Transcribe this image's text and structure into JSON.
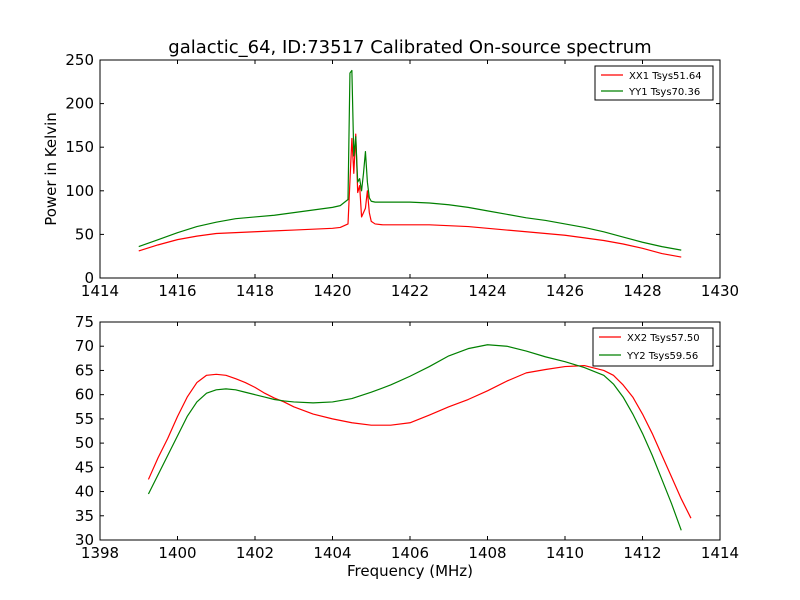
{
  "figure": {
    "title": "galactic_64, ID:73517 Calibrated On-source spectrum"
  },
  "chart_data": [
    {
      "type": "line",
      "title": "galactic_64, ID:73517 Calibrated On-source spectrum",
      "xlabel": "",
      "ylabel": "Power in Kelvin",
      "xlim": [
        1414,
        1430
      ],
      "ylim": [
        0,
        250
      ],
      "xticks": [
        1414,
        1416,
        1418,
        1420,
        1422,
        1424,
        1426,
        1428,
        1430
      ],
      "yticks": [
        0,
        50,
        100,
        150,
        200,
        250
      ],
      "grid": false,
      "legend_position": "top-right",
      "series": [
        {
          "name": "XX1 Tsys51.64",
          "color": "#ff0000",
          "x": [
            1415.0,
            1415.5,
            1416.0,
            1416.5,
            1417.0,
            1417.5,
            1418.0,
            1418.5,
            1419.0,
            1419.5,
            1420.0,
            1420.2,
            1420.4,
            1420.5,
            1420.55,
            1420.6,
            1420.65,
            1420.7,
            1420.75,
            1420.8,
            1420.85,
            1420.9,
            1420.95,
            1421.0,
            1421.1,
            1421.3,
            1421.5,
            1422.0,
            1422.5,
            1423.0,
            1423.5,
            1424.0,
            1424.5,
            1425.0,
            1425.5,
            1426.0,
            1426.5,
            1427.0,
            1427.5,
            1428.0,
            1428.5,
            1429.0
          ],
          "y": [
            31,
            38,
            44,
            48,
            51,
            52,
            53,
            54,
            55,
            56,
            57,
            58,
            62,
            160,
            120,
            165,
            98,
            106,
            70,
            75,
            80,
            100,
            75,
            65,
            62,
            61,
            61,
            61,
            61,
            60,
            59,
            57,
            55,
            53,
            51,
            49,
            46,
            43,
            39,
            34,
            28,
            24
          ]
        },
        {
          "name": "YY1 Tsys70.36",
          "color": "#008000",
          "x": [
            1415.0,
            1415.5,
            1416.0,
            1416.5,
            1417.0,
            1417.5,
            1418.0,
            1418.5,
            1419.0,
            1419.5,
            1420.0,
            1420.2,
            1420.4,
            1420.45,
            1420.5,
            1420.55,
            1420.6,
            1420.65,
            1420.7,
            1420.75,
            1420.8,
            1420.85,
            1420.9,
            1420.95,
            1421.0,
            1421.1,
            1421.3,
            1421.5,
            1422.0,
            1422.5,
            1423.0,
            1423.5,
            1424.0,
            1424.5,
            1425.0,
            1425.5,
            1426.0,
            1426.5,
            1427.0,
            1427.5,
            1428.0,
            1428.5,
            1429.0
          ],
          "y": [
            36,
            44,
            52,
            59,
            64,
            68,
            70,
            72,
            75,
            78,
            81,
            83,
            90,
            235,
            238,
            140,
            162,
            110,
            114,
            100,
            120,
            145,
            110,
            92,
            88,
            87,
            87,
            87,
            87,
            86,
            84,
            81,
            77,
            73,
            69,
            66,
            62,
            58,
            53,
            47,
            41,
            36,
            32
          ]
        }
      ]
    },
    {
      "type": "line",
      "title": "",
      "xlabel": "Frequency (MHz)",
      "ylabel": "",
      "xlim": [
        1398,
        1414
      ],
      "ylim": [
        30,
        75
      ],
      "xticks": [
        1398,
        1400,
        1402,
        1404,
        1406,
        1408,
        1410,
        1412,
        1414
      ],
      "yticks": [
        30,
        35,
        40,
        45,
        50,
        55,
        60,
        65,
        70,
        75
      ],
      "grid": false,
      "legend_position": "top-right",
      "series": [
        {
          "name": "XX2 Tsys57.50",
          "color": "#ff0000",
          "x": [
            1399.25,
            1399.5,
            1399.75,
            1400.0,
            1400.25,
            1400.5,
            1400.75,
            1401.0,
            1401.25,
            1401.5,
            1401.75,
            1402.0,
            1402.25,
            1402.5,
            1402.75,
            1403.0,
            1403.5,
            1404.0,
            1404.5,
            1405.0,
            1405.5,
            1406.0,
            1406.5,
            1407.0,
            1407.5,
            1408.0,
            1408.5,
            1409.0,
            1409.5,
            1410.0,
            1410.5,
            1411.0,
            1411.25,
            1411.5,
            1411.75,
            1412.0,
            1412.25,
            1412.5,
            1412.75,
            1413.0,
            1413.25
          ],
          "y": [
            42.5,
            47,
            51,
            55.5,
            59.5,
            62.5,
            64,
            64.2,
            64,
            63.3,
            62.5,
            61.5,
            60.3,
            59.3,
            58.5,
            57.5,
            56,
            55,
            54.2,
            53.7,
            53.7,
            54.2,
            55.8,
            57.5,
            59,
            60.8,
            62.8,
            64.5,
            65.2,
            65.8,
            66,
            65,
            64,
            62,
            59.5,
            56,
            52,
            47.5,
            43,
            38.5,
            34.5
          ]
        },
        {
          "name": "YY2 Tsys59.56",
          "color": "#008000",
          "x": [
            1399.25,
            1399.5,
            1399.75,
            1400.0,
            1400.25,
            1400.5,
            1400.75,
            1401.0,
            1401.25,
            1401.5,
            1401.75,
            1402.0,
            1402.25,
            1402.5,
            1402.75,
            1403.0,
            1403.5,
            1404.0,
            1404.5,
            1405.0,
            1405.5,
            1406.0,
            1406.5,
            1407.0,
            1407.5,
            1408.0,
            1408.5,
            1409.0,
            1409.5,
            1410.0,
            1410.5,
            1411.0,
            1411.25,
            1411.5,
            1411.75,
            1412.0,
            1412.25,
            1412.5,
            1412.75,
            1413.0
          ],
          "y": [
            39.5,
            43.5,
            47.5,
            51.5,
            55.5,
            58.5,
            60.3,
            61,
            61.2,
            61,
            60.5,
            60,
            59.5,
            59,
            58.7,
            58.5,
            58.3,
            58.5,
            59.2,
            60.5,
            62,
            63.8,
            65.8,
            68,
            69.5,
            70.3,
            70,
            69,
            67.8,
            66.8,
            65.6,
            64,
            62.2,
            59.5,
            56,
            52,
            47.5,
            42.5,
            37.5,
            32
          ]
        }
      ]
    }
  ]
}
